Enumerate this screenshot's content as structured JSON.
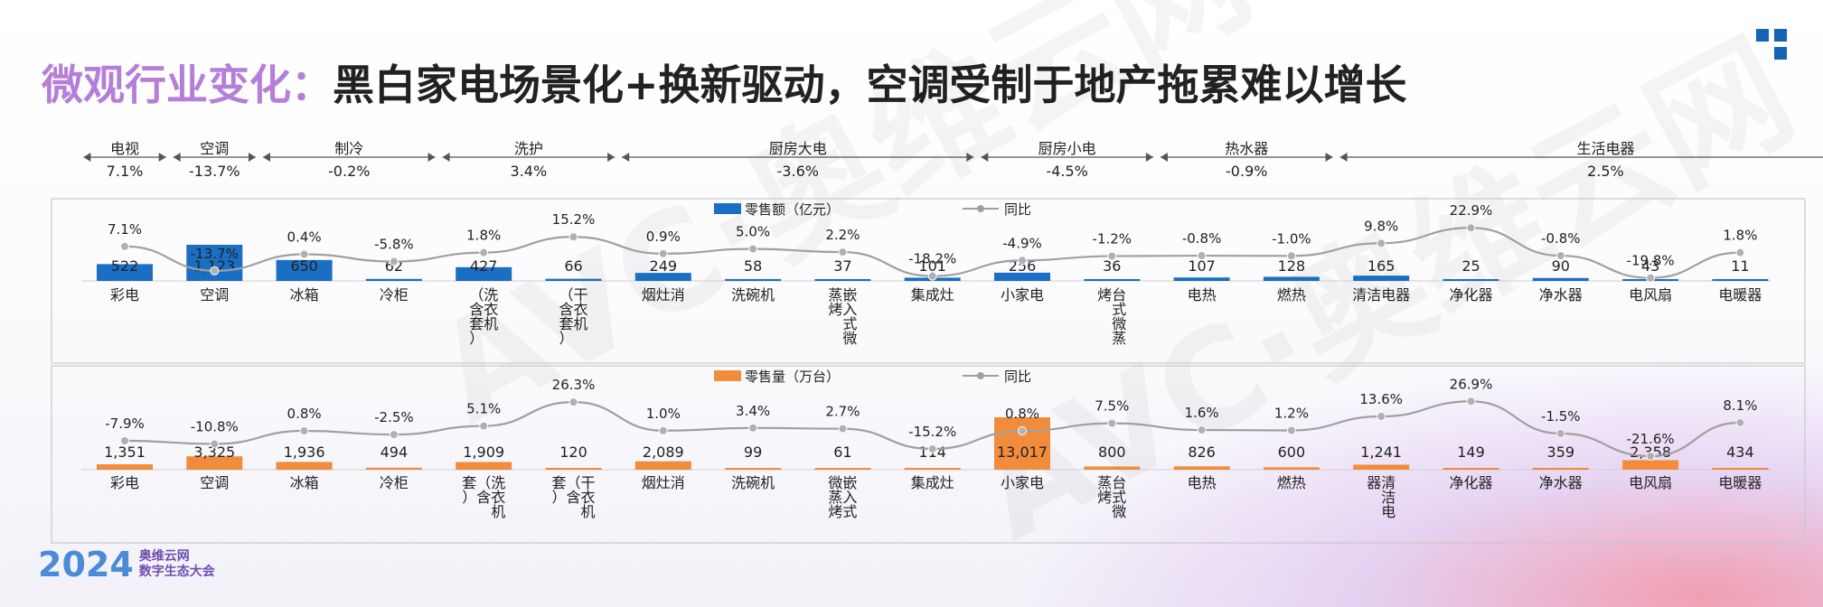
{
  "header": {
    "title_highlight": "微观行业变化：",
    "title_main": "黑白家电场景化+换新驱动，空调受制于地产拖累难以增长"
  },
  "footer": {
    "year": "2024",
    "line1": "奥维云网",
    "line2": "数字生态大会"
  },
  "groups": [
    {
      "name": "电视",
      "pct": "7.1%",
      "from": 0,
      "to": 0
    },
    {
      "name": "空调",
      "pct": "-13.7%",
      "from": 1,
      "to": 1
    },
    {
      "name": "制冷",
      "pct": "-0.2%",
      "from": 2,
      "to": 3
    },
    {
      "name": "洗护",
      "pct": "3.4%",
      "from": 4,
      "to": 5
    },
    {
      "name": "厨房大电",
      "pct": "-3.6%",
      "from": 6,
      "to": 9
    },
    {
      "name": "厨房小电",
      "pct": "-4.5%",
      "from": 10,
      "to": 11
    },
    {
      "name": "热水器",
      "pct": "-0.9%",
      "from": 12,
      "to": 13
    },
    {
      "name": "生活电器",
      "pct": "2.5%",
      "from": 14,
      "to": 19
    }
  ],
  "chart_data": [
    {
      "type": "bar",
      "series": [
        {
          "name": "零售额（亿元）",
          "type": "bar",
          "color": "#1a6fc4",
          "values": [
            522,
            1123,
            650,
            62,
            427,
            66,
            249,
            58,
            37,
            101,
            256,
            36,
            107,
            128,
            165,
            25,
            90,
            43,
            11
          ],
          "labels": [
            "522",
            "1,123",
            "650",
            "62",
            "427",
            "66",
            "249",
            "58",
            "37",
            "101",
            "256",
            "36",
            "107",
            "128",
            "165",
            "25",
            "90",
            "43",
            "11"
          ]
        },
        {
          "name": "同比",
          "type": "line",
          "color": "#a0a0a0",
          "values": [
            7.1,
            -13.7,
            0.4,
            -5.8,
            1.8,
            15.2,
            0.9,
            5.0,
            2.2,
            -18.2,
            -4.9,
            -1.2,
            -0.8,
            -1.0,
            9.8,
            22.9,
            -0.8,
            -19.8,
            1.8
          ],
          "labels": [
            "7.1%",
            "-13.7%",
            "0.4%",
            "-5.8%",
            "1.8%",
            "15.2%",
            "0.9%",
            "5.0%",
            "2.2%",
            "-18.2%",
            "-4.9%",
            "-1.2%",
            "-0.8%",
            "-1.0%",
            "9.8%",
            "22.9%",
            "-0.8%",
            "-19.8%",
            "1.8%"
          ]
        }
      ],
      "categories": [
        [
          "彩",
          "电"
        ],
        [
          "空",
          "调"
        ],
        [
          "冰",
          "箱"
        ],
        [
          "冷",
          "柜"
        ],
        [
          "（含套）",
          "洗衣机"
        ],
        [
          "（含套）",
          "干衣机"
        ],
        [
          "烟",
          "灶",
          "消"
        ],
        [
          "洗",
          "碗",
          "机"
        ],
        [
          "蒸烤",
          "嵌入式微"
        ],
        [
          "集",
          "成",
          "灶"
        ],
        [
          "小",
          "家",
          "电"
        ],
        [
          "烤",
          "台式微蒸"
        ],
        [
          "电",
          "热"
        ],
        [
          "燃",
          "热"
        ],
        [
          "清",
          "洁",
          "电",
          "器"
        ],
        [
          "净",
          "化",
          "器"
        ],
        [
          "净",
          "水",
          "器"
        ],
        [
          "电",
          "风",
          "扇"
        ],
        [
          "电",
          "暖",
          "器"
        ]
      ]
    },
    {
      "type": "bar",
      "series": [
        {
          "name": "零售量（万台）",
          "type": "bar",
          "color": "#f08c3c",
          "values": [
            1351,
            3325,
            1936,
            494,
            1909,
            120,
            2089,
            99,
            61,
            114,
            13017,
            800,
            826,
            600,
            1241,
            149,
            359,
            2358,
            434
          ],
          "labels": [
            "1,351",
            "3,325",
            "1,936",
            "494",
            "1,909",
            "120",
            "2,089",
            "99",
            "61",
            "114",
            "13,017",
            "800",
            "826",
            "600",
            "1,241",
            "149",
            "359",
            "2,358",
            "434"
          ]
        },
        {
          "name": "同比",
          "type": "line",
          "color": "#a0a0a0",
          "values": [
            -7.9,
            -10.8,
            0.8,
            -2.5,
            5.1,
            26.3,
            1.0,
            3.4,
            2.7,
            -15.2,
            0.8,
            7.5,
            1.6,
            1.2,
            13.6,
            26.9,
            -1.5,
            -21.6,
            8.1
          ],
          "labels": [
            "-7.9%",
            "-10.8%",
            "0.8%",
            "-2.5%",
            "5.1%",
            "26.3%",
            "1.0%",
            "3.4%",
            "2.7%",
            "-15.2%",
            "0.8%",
            "7.5%",
            "1.6%",
            "1.2%",
            "13.6%",
            "26.9%",
            "-1.5%",
            "-21.6%",
            "8.1%"
          ]
        }
      ],
      "categories": [
        [
          "彩",
          "电"
        ],
        [
          "空",
          "调"
        ],
        [
          "冰",
          "箱"
        ],
        [
          "冷",
          "柜"
        ],
        [
          "套）",
          "（含",
          "洗衣机"
        ],
        [
          "套）",
          "（含",
          "干衣机"
        ],
        [
          "烟",
          "灶",
          "消"
        ],
        [
          "洗",
          "碗",
          "机"
        ],
        [
          "微蒸烤",
          "嵌入式"
        ],
        [
          "集",
          "成",
          "灶"
        ],
        [
          "小",
          "家",
          "电"
        ],
        [
          "蒸烤",
          "台式微"
        ],
        [
          "电",
          "热"
        ],
        [
          "燃",
          "热"
        ],
        [
          "器",
          "清洁电"
        ],
        [
          "净",
          "化",
          "器"
        ],
        [
          "净",
          "水",
          "器"
        ],
        [
          "电",
          "风",
          "扇"
        ],
        [
          "电",
          "暖",
          "器"
        ]
      ]
    }
  ]
}
